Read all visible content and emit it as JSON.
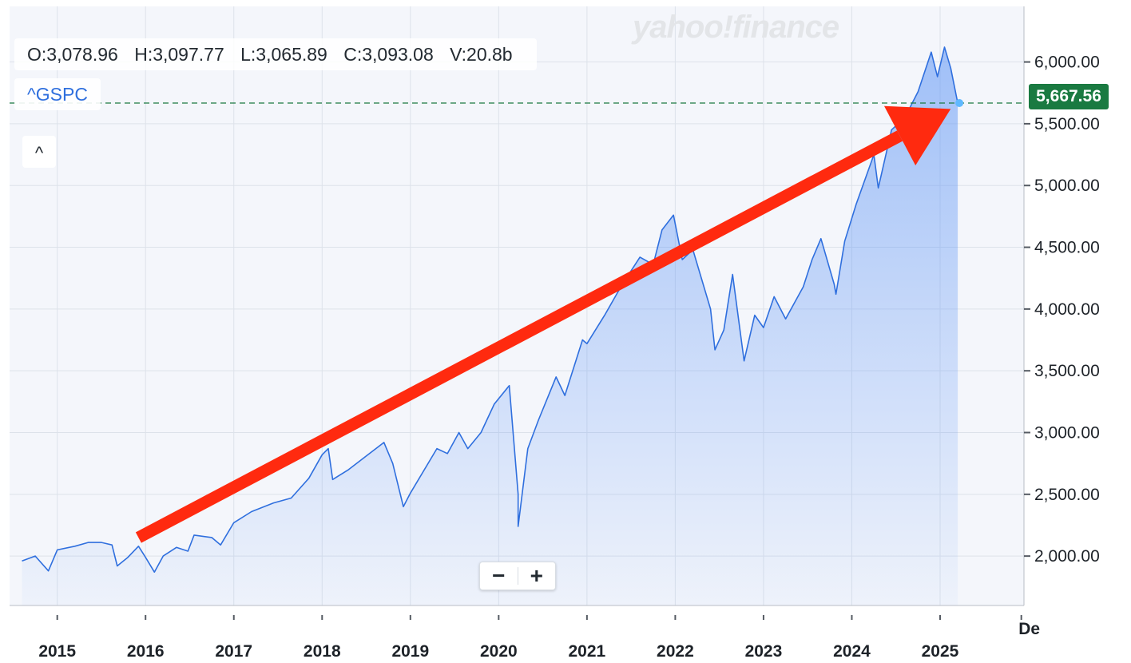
{
  "watermark": "yahoo!finance",
  "ohlc": {
    "open": "O:3,078.96",
    "high": "H:3,097.77",
    "low": "L:3,065.89",
    "close": "C:3,093.08",
    "volume": "V:20.8b"
  },
  "symbol": "^GSPC",
  "collapse_label": "^",
  "zoom": {
    "minus": "−",
    "plus": "+"
  },
  "current_price": "5,667.56",
  "colors": {
    "line": "#2f6fde",
    "area": "#5b93f5",
    "price_tag": "#1a7a41",
    "price_line": "#1a7a41",
    "arrow": "#ff2a0f"
  },
  "chart_data": {
    "type": "area",
    "title": "",
    "xlabel": "",
    "ylabel": "",
    "x_ticks": [
      "2015",
      "2016",
      "2017",
      "2018",
      "2019",
      "2020",
      "2021",
      "2022",
      "2023",
      "2024",
      "2025",
      "De"
    ],
    "y_ticks": [
      "2,000.00",
      "2,500.00",
      "3,000.00",
      "3,500.00",
      "4,000.00",
      "4,500.00",
      "5,000.00",
      "5,500.00",
      "6,000.00"
    ],
    "ylim": [
      1600,
      6450
    ],
    "grid": true,
    "series": [
      {
        "values": [
          [
            2014.6,
            1960
          ],
          [
            2014.75,
            2000
          ],
          [
            2014.9,
            1880
          ],
          [
            2015.0,
            2050
          ],
          [
            2015.2,
            2080
          ],
          [
            2015.35,
            2110
          ],
          [
            2015.5,
            2110
          ],
          [
            2015.62,
            2090
          ],
          [
            2015.68,
            1920
          ],
          [
            2015.8,
            1990
          ],
          [
            2015.92,
            2080
          ],
          [
            2016.0,
            1990
          ],
          [
            2016.1,
            1870
          ],
          [
            2016.2,
            2000
          ],
          [
            2016.35,
            2070
          ],
          [
            2016.48,
            2040
          ],
          [
            2016.55,
            2170
          ],
          [
            2016.75,
            2150
          ],
          [
            2016.85,
            2090
          ],
          [
            2017.0,
            2270
          ],
          [
            2017.2,
            2360
          ],
          [
            2017.45,
            2430
          ],
          [
            2017.65,
            2470
          ],
          [
            2017.85,
            2630
          ],
          [
            2018.0,
            2820
          ],
          [
            2018.07,
            2870
          ],
          [
            2018.12,
            2620
          ],
          [
            2018.3,
            2700
          ],
          [
            2018.5,
            2810
          ],
          [
            2018.7,
            2920
          ],
          [
            2018.8,
            2750
          ],
          [
            2018.92,
            2400
          ],
          [
            2019.0,
            2510
          ],
          [
            2019.3,
            2870
          ],
          [
            2019.42,
            2830
          ],
          [
            2019.55,
            3000
          ],
          [
            2019.65,
            2870
          ],
          [
            2019.8,
            3000
          ],
          [
            2019.95,
            3230
          ],
          [
            2020.12,
            3380
          ],
          [
            2020.22,
            2500
          ],
          [
            2020.22,
            2240
          ],
          [
            2020.33,
            2870
          ],
          [
            2020.45,
            3100
          ],
          [
            2020.65,
            3450
          ],
          [
            2020.75,
            3300
          ],
          [
            2020.95,
            3750
          ],
          [
            2021.0,
            3720
          ],
          [
            2021.2,
            3950
          ],
          [
            2021.4,
            4200
          ],
          [
            2021.6,
            4420
          ],
          [
            2021.75,
            4360
          ],
          [
            2021.85,
            4640
          ],
          [
            2021.98,
            4760
          ],
          [
            2022.08,
            4400
          ],
          [
            2022.2,
            4480
          ],
          [
            2022.4,
            4000
          ],
          [
            2022.45,
            3670
          ],
          [
            2022.55,
            3830
          ],
          [
            2022.65,
            4280
          ],
          [
            2022.78,
            3580
          ],
          [
            2022.9,
            3950
          ],
          [
            2023.0,
            3850
          ],
          [
            2023.12,
            4100
          ],
          [
            2023.25,
            3920
          ],
          [
            2023.45,
            4180
          ],
          [
            2023.55,
            4400
          ],
          [
            2023.65,
            4570
          ],
          [
            2023.8,
            4200
          ],
          [
            2023.82,
            4120
          ],
          [
            2023.92,
            4550
          ],
          [
            2024.05,
            4850
          ],
          [
            2024.25,
            5250
          ],
          [
            2024.3,
            4980
          ],
          [
            2024.45,
            5450
          ],
          [
            2024.6,
            5550
          ],
          [
            2024.75,
            5760
          ],
          [
            2024.9,
            6080
          ],
          [
            2024.97,
            5880
          ],
          [
            2025.05,
            6120
          ],
          [
            2025.12,
            5950
          ],
          [
            2025.2,
            5667
          ]
        ]
      }
    ],
    "current_value": 5667.56,
    "annotations": [
      {
        "type": "arrow",
        "from": [
          2015.92,
          2150
        ],
        "to": [
          2025.12,
          5620
        ]
      }
    ]
  }
}
